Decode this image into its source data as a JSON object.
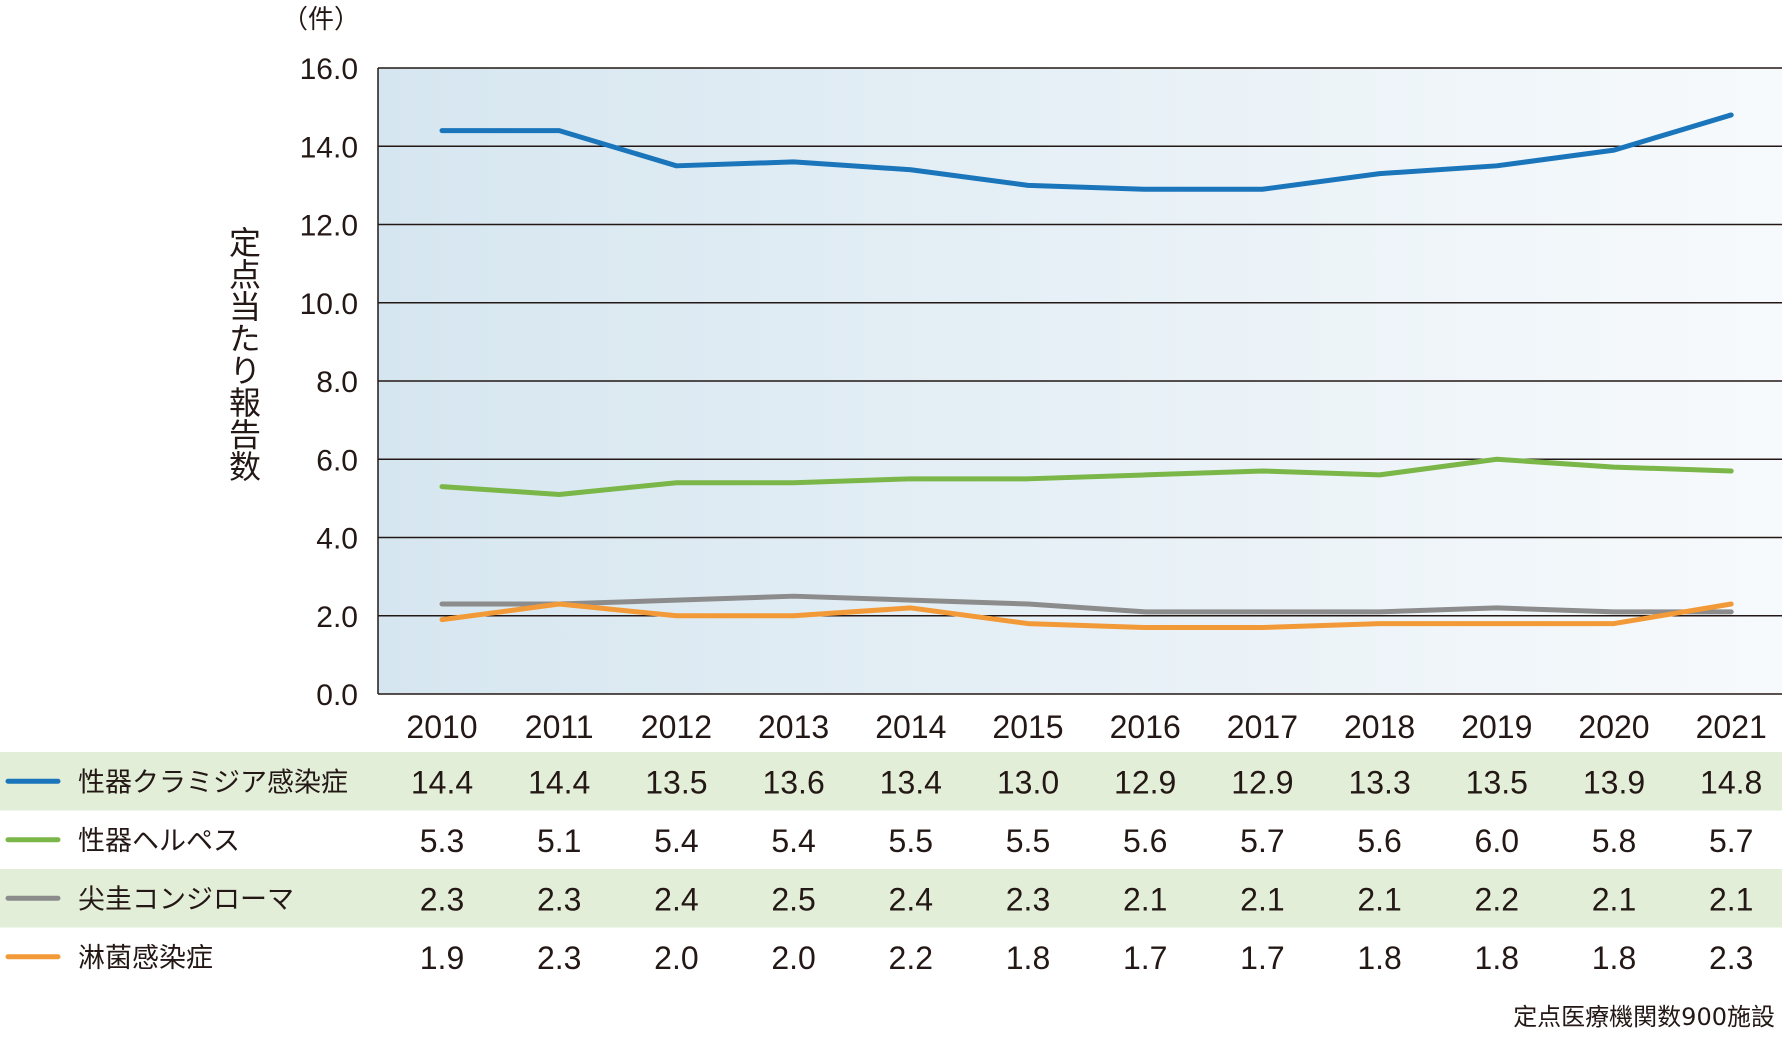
{
  "chart_data": {
    "type": "line",
    "unit_label": "（件）",
    "ylabel": "定点当たり報告数",
    "ylim": [
      0,
      16
    ],
    "yticks": [
      "0.0",
      "2.0",
      "4.0",
      "6.0",
      "8.0",
      "10.0",
      "12.0",
      "14.0",
      "16.0"
    ],
    "ytick_values": [
      0,
      2,
      4,
      6,
      8,
      10,
      12,
      14,
      16
    ],
    "categories": [
      "2010",
      "2011",
      "2012",
      "2013",
      "2014",
      "2015",
      "2016",
      "2017",
      "2018",
      "2019",
      "2020",
      "2021"
    ],
    "grid": true,
    "series": [
      {
        "name": "性器クラミジア感染症",
        "color": "#1a75bb",
        "values": [
          14.4,
          14.4,
          13.5,
          13.6,
          13.4,
          13.0,
          12.9,
          12.9,
          13.3,
          13.5,
          13.9,
          14.8
        ],
        "labels": [
          "14.4",
          "14.4",
          "13.5",
          "13.6",
          "13.4",
          "13.0",
          "12.9",
          "12.9",
          "13.3",
          "13.5",
          "13.9",
          "14.8"
        ]
      },
      {
        "name": "性器ヘルペス",
        "color": "#7ab648",
        "values": [
          5.3,
          5.1,
          5.4,
          5.4,
          5.5,
          5.5,
          5.6,
          5.7,
          5.6,
          6.0,
          5.8,
          5.7
        ],
        "labels": [
          "5.3",
          "5.1",
          "5.4",
          "5.4",
          "5.5",
          "5.5",
          "5.6",
          "5.7",
          "5.6",
          "6.0",
          "5.8",
          "5.7"
        ]
      },
      {
        "name": "尖圭コンジローマ",
        "color": "#8c8c8c",
        "values": [
          2.3,
          2.3,
          2.4,
          2.5,
          2.4,
          2.3,
          2.1,
          2.1,
          2.1,
          2.2,
          2.1,
          2.1
        ],
        "labels": [
          "2.3",
          "2.3",
          "2.4",
          "2.5",
          "2.4",
          "2.3",
          "2.1",
          "2.1",
          "2.1",
          "2.2",
          "2.1",
          "2.1"
        ]
      },
      {
        "name": "淋菌感染症",
        "color": "#f39a38",
        "values": [
          1.9,
          2.3,
          2.0,
          2.0,
          2.2,
          1.8,
          1.7,
          1.7,
          1.8,
          1.8,
          1.8,
          2.3
        ],
        "labels": [
          "1.9",
          "2.3",
          "2.0",
          "2.0",
          "2.2",
          "1.8",
          "1.7",
          "1.7",
          "1.8",
          "1.8",
          "1.8",
          "2.3"
        ]
      }
    ],
    "note": "定点医療機関数900施設",
    "colors": {
      "plot_bg_left": "#d6e6f0",
      "plot_bg_right": "#f7fafc",
      "row_stripe": "#e3eed8"
    }
  }
}
